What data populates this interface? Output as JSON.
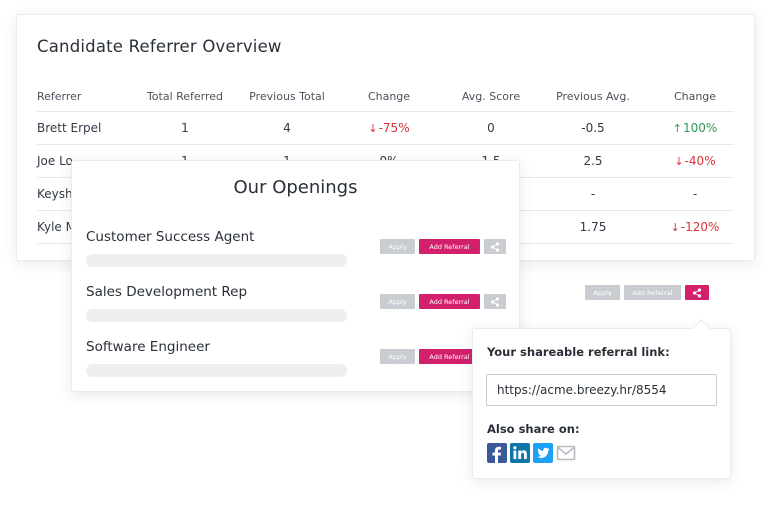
{
  "overview": {
    "title": "Candidate Referrer Overview",
    "columns": [
      "Referrer",
      "Total Referred",
      "Previous Total",
      "Change",
      "Avg. Score",
      "Previous Avg.",
      "Change"
    ],
    "rows": [
      {
        "referrer": "Brett Erpel",
        "total": "1",
        "prev_total": "4",
        "change": "-75%",
        "change_dir": "down",
        "avg": "0",
        "prev_avg": "-0.5",
        "avg_change": "100%",
        "avg_change_dir": "up"
      },
      {
        "referrer": "Joe Lo",
        "total": "1",
        "prev_total": "1",
        "change": "0%",
        "change_dir": "none",
        "avg": "1.5",
        "prev_avg": "2.5",
        "avg_change": "-40%",
        "avg_change_dir": "down"
      },
      {
        "referrer": "Keysh",
        "total": "",
        "prev_total": "",
        "change": "",
        "change_dir": "none",
        "avg": "",
        "prev_avg": "-",
        "avg_change": "-",
        "avg_change_dir": "none"
      },
      {
        "referrer": "Kyle M",
        "total": "",
        "prev_total": "",
        "change": "",
        "change_dir": "none",
        "avg": "",
        "prev_avg": "1.75",
        "avg_change": "-120%",
        "avg_change_dir": "down"
      }
    ],
    "colors": {
      "negative": "#d6333a",
      "positive": "#2f9a57"
    }
  },
  "openings": {
    "title": "Our Openings",
    "jobs": [
      {
        "name": "Customer Success Agent"
      },
      {
        "name": "Sales Development Rep"
      },
      {
        "name": "Software Engineer"
      }
    ],
    "apply_label": "Apply",
    "add_referral_label": "Add Referral",
    "share_icon": "share-icon"
  },
  "background_row": {
    "apply_label": "Apply",
    "add_referral_label": "Add Referral"
  },
  "share": {
    "link_label": "Your shareable referral link:",
    "link_value": "https://acme.breezy.hr/8554",
    "also_share_label": "Also share on:",
    "networks": [
      "facebook-icon",
      "linkedin-icon",
      "twitter-icon",
      "email-icon"
    ]
  },
  "colors": {
    "accent": "#d3206c",
    "button_grey": "#c9ccd1",
    "facebook": "#3b5998",
    "linkedin": "#0e76a8",
    "twitter": "#1da1f2",
    "email": "#b7bbc1"
  }
}
